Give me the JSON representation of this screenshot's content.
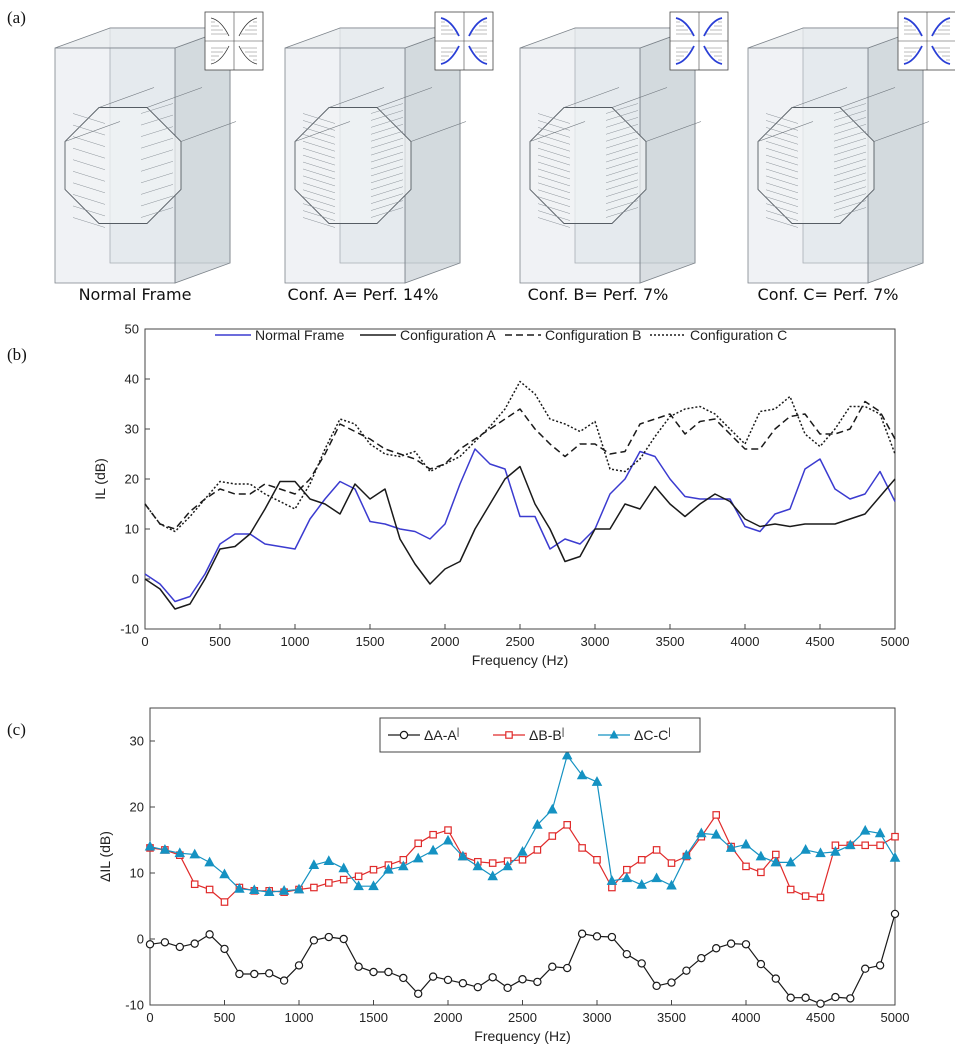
{
  "panel_letters": {
    "a": "(a)",
    "b": "(b)",
    "c": "(c)"
  },
  "frames": {
    "labels": [
      "Normal Frame",
      "Conf. A= Perf. 14%",
      "Conf. B= Perf. 7%",
      "Conf. C= Perf. 7%"
    ],
    "colors": {
      "box": "#dde3e8",
      "edge": "#7c838a",
      "inset_line": "#2a3fd6"
    }
  },
  "chart_data": [
    {
      "type": "line",
      "title": "",
      "xlabel": "Frequency (Hz)",
      "ylabel": "IL (dB)",
      "xlim": [
        0,
        5000
      ],
      "ylim": [
        -10,
        50
      ],
      "xticks": [
        0,
        500,
        1000,
        1500,
        2000,
        2500,
        3000,
        3500,
        4000,
        4500,
        5000
      ],
      "yticks": [
        -10,
        0,
        10,
        20,
        30,
        40,
        50
      ],
      "grid": false,
      "legend_position": "top",
      "series": [
        {
          "name": "Normal Frame",
          "color": "#3b3bd0",
          "dash": "solid",
          "x": [
            0,
            100,
            200,
            300,
            400,
            500,
            600,
            700,
            800,
            900,
            1000,
            1100,
            1200,
            1300,
            1400,
            1500,
            1600,
            1700,
            1800,
            1900,
            2000,
            2100,
            2200,
            2300,
            2400,
            2500,
            2600,
            2700,
            2800,
            2900,
            3000,
            3100,
            3200,
            3300,
            3400,
            3500,
            3600,
            3700,
            3800,
            3900,
            4000,
            4100,
            4200,
            4300,
            4400,
            4500,
            4600,
            4700,
            4800,
            4900,
            5000
          ],
          "y": [
            1,
            -1,
            -4.5,
            -3.5,
            1,
            7,
            9,
            9,
            7,
            6.5,
            6,
            12,
            16,
            19.5,
            18,
            11.5,
            11,
            10,
            9.5,
            8,
            11,
            19,
            26,
            23,
            22,
            12.5,
            12.5,
            6,
            8,
            7,
            10,
            17,
            20,
            25.5,
            24.5,
            20,
            16.5,
            16,
            16,
            16,
            10.5,
            9.5,
            13,
            14,
            22,
            24,
            18,
            16,
            17,
            21.5,
            15.5
          ]
        },
        {
          "name": "Configuration A",
          "color": "#1a1a1a",
          "dash": "solid",
          "x": [
            0,
            100,
            200,
            300,
            400,
            500,
            600,
            700,
            800,
            900,
            1000,
            1100,
            1200,
            1300,
            1400,
            1500,
            1600,
            1700,
            1800,
            1900,
            2000,
            2100,
            2200,
            2300,
            2400,
            2500,
            2600,
            2700,
            2800,
            2900,
            3000,
            3100,
            3200,
            3300,
            3400,
            3500,
            3600,
            3700,
            3800,
            3900,
            4000,
            4100,
            4200,
            4300,
            4400,
            4500,
            4600,
            4700,
            4800,
            4900,
            5000
          ],
          "y": [
            0,
            -2,
            -6,
            -5,
            0,
            6,
            6.5,
            9,
            14,
            19.5,
            19.5,
            16,
            15,
            13,
            19,
            16,
            18,
            8,
            3,
            -1,
            2,
            3.5,
            10,
            15,
            20,
            22.5,
            15,
            10,
            3.5,
            4.5,
            10,
            10,
            15,
            14,
            18.5,
            15,
            12.5,
            15,
            17,
            15.5,
            12,
            10.5,
            11,
            10.5,
            11,
            11,
            11,
            12,
            13,
            16.5,
            20
          ]
        },
        {
          "name": "Configuration B",
          "color": "#1a1a1a",
          "dash": "7,4",
          "x": [
            0,
            100,
            200,
            300,
            400,
            500,
            600,
            700,
            800,
            900,
            1000,
            1100,
            1200,
            1300,
            1400,
            1500,
            1600,
            1700,
            1800,
            1900,
            2000,
            2100,
            2200,
            2300,
            2400,
            2500,
            2600,
            2700,
            2800,
            2900,
            3000,
            3100,
            3200,
            3300,
            3400,
            3500,
            3600,
            3700,
            3800,
            3900,
            4000,
            4100,
            4200,
            4300,
            4400,
            4500,
            4600,
            4700,
            4800,
            4900,
            5000
          ],
          "y": [
            15,
            11,
            10,
            13.5,
            16,
            18,
            17,
            17,
            19,
            18,
            17,
            20,
            25,
            31,
            29.5,
            28,
            26,
            25,
            24,
            22,
            23,
            26,
            28,
            30,
            32,
            34,
            30,
            27,
            24.5,
            27,
            27,
            25,
            25.5,
            31,
            32,
            33,
            29,
            31.5,
            32,
            29,
            26,
            26,
            30,
            32.5,
            33,
            29,
            29,
            30,
            35.5,
            33.5,
            28
          ]
        },
        {
          "name": "Configuration C",
          "color": "#1a1a1a",
          "dash": "2,2",
          "x": [
            0,
            100,
            200,
            300,
            400,
            500,
            600,
            700,
            800,
            900,
            1000,
            1100,
            1200,
            1300,
            1400,
            1500,
            1600,
            1700,
            1800,
            1900,
            2000,
            2100,
            2200,
            2300,
            2400,
            2500,
            2600,
            2700,
            2800,
            2900,
            3000,
            3100,
            3200,
            3300,
            3400,
            3500,
            3600,
            3700,
            3800,
            3900,
            4000,
            4100,
            4200,
            4300,
            4400,
            4500,
            4600,
            4700,
            4800,
            4900,
            5000
          ],
          "y": [
            15,
            11,
            9.5,
            12.5,
            16,
            19.5,
            19,
            19,
            17,
            15.5,
            14,
            19,
            26,
            32,
            31,
            27,
            25,
            24.5,
            25.5,
            21.5,
            23,
            24.5,
            27.5,
            30.5,
            34,
            39.5,
            37,
            32,
            31,
            29.5,
            31.5,
            22,
            21.5,
            24,
            28.5,
            32.5,
            34,
            34.5,
            33,
            30,
            27,
            33.5,
            34,
            36.5,
            29,
            26.5,
            30,
            34.5,
            34.5,
            33,
            25
          ]
        }
      ]
    },
    {
      "type": "line",
      "title": "",
      "xlabel": "Frequency (Hz)",
      "ylabel": "ΔIL (dB)",
      "xlim": [
        0,
        5000
      ],
      "ylim": [
        -10,
        35
      ],
      "xticks": [
        0,
        500,
        1000,
        1500,
        2000,
        2500,
        3000,
        3500,
        4000,
        4500,
        5000
      ],
      "yticks": [
        -10,
        0,
        10,
        20,
        30
      ],
      "grid": false,
      "legend_position": "top",
      "series": [
        {
          "name": "ΔA-A",
          "name_suffix": "|",
          "color": "#1a1a1a",
          "marker": "circle",
          "x": [
            0,
            100,
            200,
            300,
            400,
            500,
            600,
            700,
            800,
            900,
            1000,
            1100,
            1200,
            1300,
            1400,
            1500,
            1600,
            1700,
            1800,
            1900,
            2000,
            2100,
            2200,
            2300,
            2400,
            2500,
            2600,
            2700,
            2800,
            2900,
            3000,
            3100,
            3200,
            3300,
            3400,
            3500,
            3600,
            3700,
            3800,
            3900,
            4000,
            4100,
            4200,
            4300,
            4400,
            4500,
            4600,
            4700,
            4800,
            4900,
            5000
          ],
          "y": [
            -0.8,
            -0.5,
            -1.2,
            -0.7,
            0.7,
            -1.5,
            -5.3,
            -5.3,
            -5.2,
            -6.3,
            -4,
            -0.2,
            0.3,
            0,
            -4.2,
            -5,
            -5,
            -5.9,
            -8.3,
            -5.7,
            -6.2,
            -6.7,
            -7.3,
            -5.8,
            -7.4,
            -6.1,
            -6.5,
            -4.2,
            -4.4,
            0.8,
            0.4,
            0.3,
            -2.3,
            -3.7,
            -7.1,
            -6.6,
            -4.8,
            -2.9,
            -1.4,
            -0.7,
            -0.8,
            -3.8,
            -6,
            -8.9,
            -8.9,
            -9.8,
            -8.8,
            -9,
            -4.5,
            -4,
            3.8
          ]
        },
        {
          "name": "ΔB-B",
          "name_suffix": "|",
          "color": "#e02b2b",
          "marker": "square",
          "x": [
            0,
            100,
            200,
            300,
            400,
            500,
            600,
            700,
            800,
            900,
            1000,
            1100,
            1200,
            1300,
            1400,
            1500,
            1600,
            1700,
            1800,
            1900,
            2000,
            2100,
            2200,
            2300,
            2400,
            2500,
            2600,
            2700,
            2800,
            2900,
            3000,
            3100,
            3200,
            3300,
            3400,
            3500,
            3600,
            3700,
            3800,
            3900,
            4000,
            4100,
            4200,
            4300,
            4400,
            4500,
            4600,
            4700,
            4800,
            4900,
            5000
          ],
          "y": [
            13.8,
            13.5,
            12.7,
            8.3,
            7.5,
            5.6,
            7.8,
            7.3,
            7.3,
            7.1,
            7.5,
            7.8,
            8.5,
            9,
            9.5,
            10.5,
            11.2,
            12,
            14.5,
            15.8,
            16.5,
            12.5,
            11.7,
            11.5,
            11.8,
            12,
            13.5,
            15.6,
            17.3,
            13.8,
            12,
            7.8,
            10.5,
            12,
            13.5,
            11.5,
            12.5,
            15.5,
            18.8,
            14,
            11,
            10.1,
            12.8,
            7.5,
            6.5,
            6.3,
            14.2,
            14.2,
            14.2,
            14.2,
            15.5
          ]
        },
        {
          "name": "ΔC-C",
          "name_suffix": "|",
          "color": "#1592c2",
          "marker": "triangle",
          "x": [
            0,
            100,
            200,
            300,
            400,
            500,
            600,
            700,
            800,
            900,
            1000,
            1100,
            1200,
            1300,
            1400,
            1500,
            1600,
            1700,
            1800,
            1900,
            2000,
            2100,
            2200,
            2300,
            2400,
            2500,
            2600,
            2700,
            2800,
            2900,
            3000,
            3100,
            3200,
            3300,
            3400,
            3500,
            3600,
            3700,
            3800,
            3900,
            4000,
            4100,
            4200,
            4300,
            4400,
            4500,
            4600,
            4700,
            4800,
            4900,
            5000
          ],
          "y": [
            14,
            13.5,
            13,
            12.8,
            11.6,
            9.8,
            7.6,
            7.4,
            7.1,
            7.3,
            7.5,
            11.2,
            11.8,
            10.7,
            8,
            8,
            10.5,
            11,
            12.2,
            13.4,
            14.9,
            12.5,
            11,
            9.5,
            11,
            13.2,
            17.3,
            19.6,
            27.8,
            24.8,
            23.8,
            8.8,
            9.2,
            8.2,
            9.2,
            8.1,
            12.7,
            16,
            15.8,
            13.8,
            14.3,
            12.5,
            11.6,
            11.6,
            13.5,
            13,
            13.2,
            14.2,
            16.4,
            16,
            12.3
          ]
        }
      ]
    }
  ]
}
